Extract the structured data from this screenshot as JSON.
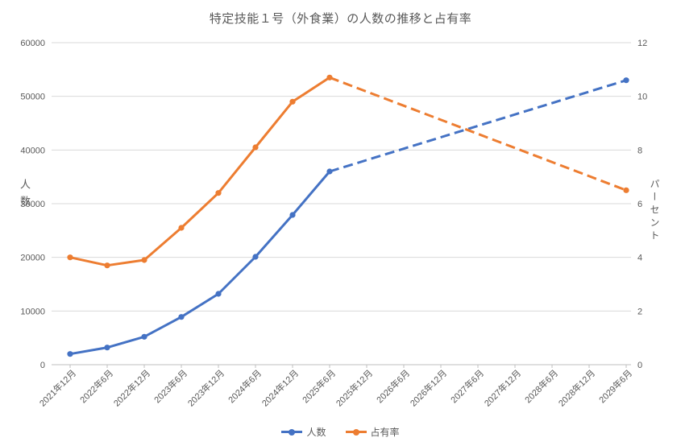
{
  "title": "特定技能１号（外食業）の人数の推移と占有率",
  "chart_data": {
    "type": "line",
    "title": "特定技能１号（外食業）の人数の推移と占有率",
    "categories": [
      "2021年12月",
      "2022年6月",
      "2022年12月",
      "2023年6月",
      "2023年12月",
      "2024年6月",
      "2024年12月",
      "2025年6月",
      "2025年12月",
      "2026年6月",
      "2026年12月",
      "2027年6月",
      "2027年12月",
      "2028年6月",
      "2028年12月",
      "2029年6月"
    ],
    "left_axis": {
      "title": "人数",
      "min": 0,
      "max": 60000,
      "step": 10000
    },
    "right_axis": {
      "title": "パーセント",
      "min": 0,
      "max": 12,
      "step": 2
    },
    "grid": true,
    "legend_position": "bottom",
    "colors": {
      "grid": "#D9D9D9",
      "axis_line": "#BFBFBF",
      "tick": "#BFBFBF",
      "label_text": "#595959"
    },
    "series": [
      {
        "name": "人数",
        "axis": "left",
        "color": "#4472C4",
        "marker": "circle",
        "values": [
          2000,
          3200,
          5200,
          8900,
          13200,
          20100,
          27900,
          36000
        ],
        "forecast": {
          "style": "dashed",
          "end_category": "2029年6月",
          "end_value": 53000
        }
      },
      {
        "name": "占有率",
        "axis": "right",
        "color": "#ED7D31",
        "marker": "circle",
        "values": [
          4.0,
          3.7,
          3.9,
          5.1,
          6.4,
          8.1,
          9.8,
          10.7
        ],
        "forecast": {
          "style": "dashed",
          "end_category": "2029年6月",
          "end_value": 6.5
        }
      }
    ]
  }
}
